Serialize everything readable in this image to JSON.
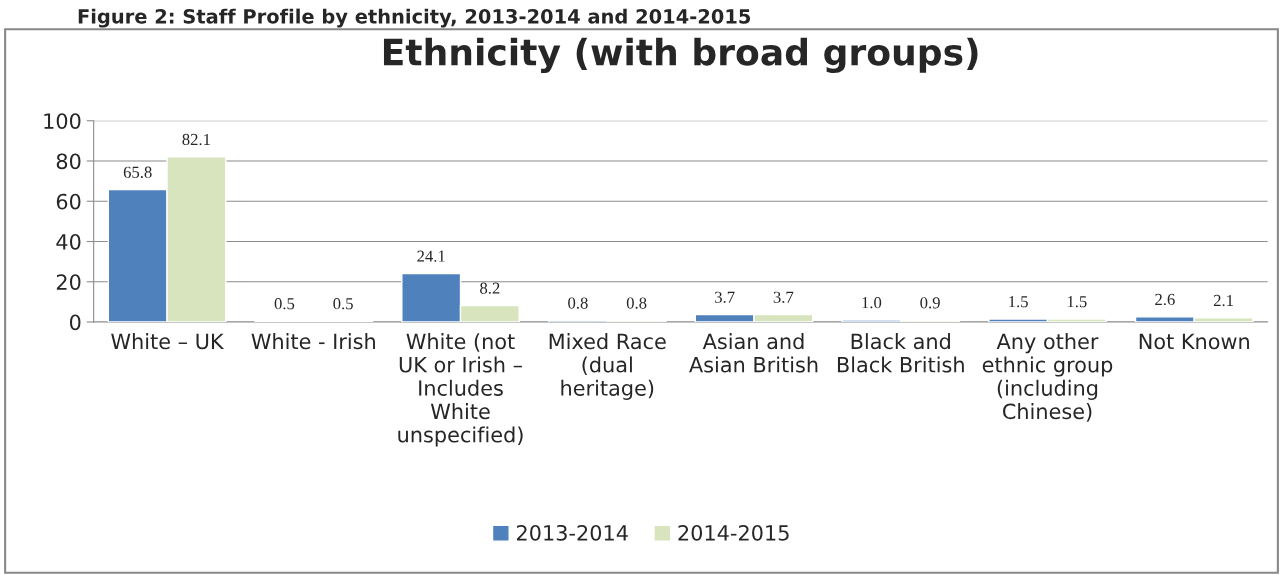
{
  "chart_data": {
    "type": "bar",
    "title": "Ethnicity (with broad groups)",
    "annotations": [
      "Figure 2: Staff Profile by ethnicity, 2013-2014 and 2014-2015"
    ],
    "categories": [
      "White – UK",
      "White - Irish",
      "White (not\nUK or Irish –\nIncludes\nWhite\nunspecified)",
      "Mixed Race\n(dual\nheritage)",
      "Asian and\nAsian British",
      "Black and\nBlack British",
      "Any other\nethnic group\n(including\nChinese)",
      "Not Known"
    ],
    "series": [
      {
        "name": "2013-2014",
        "color": "#4f81bd",
        "values": [
          65.8,
          0.5,
          24.1,
          0.8,
          3.7,
          1.0,
          1.5,
          2.6
        ],
        "value_labels": [
          "65.8",
          "0.5",
          "24.1",
          "0.8",
          "3.7",
          "1.0",
          "1.5",
          "2.6"
        ]
      },
      {
        "name": "2014-2015",
        "color": "#d7e4bd",
        "values": [
          82.1,
          0.5,
          8.2,
          0.8,
          3.7,
          0.9,
          1.5,
          2.1
        ],
        "value_labels": [
          "82.1",
          "0.5",
          "8.2",
          "0.8",
          "3.7",
          "0.9",
          "1.5",
          "2.1"
        ]
      }
    ],
    "ylim": [
      0,
      100
    ],
    "yticks": [
      0,
      20,
      40,
      60,
      80,
      100
    ],
    "grid": "y",
    "legend": "bottom"
  }
}
